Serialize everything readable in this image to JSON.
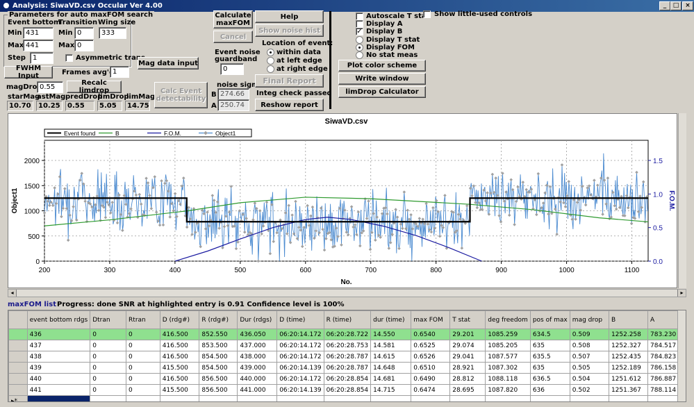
{
  "window": {
    "title": "Analysis: SiwaVD.csv  Occular Ver 4.00"
  },
  "params": {
    "group_title": "Parameters for auto maxFOM search",
    "event_bottom": "Event bottom",
    "transition": "Transition",
    "wing_size": "Wing size",
    "min_label": "Min",
    "max_label": "Max",
    "step_label": "Step",
    "min_trans_label": "Min",
    "max_trans_label": "Max",
    "eb_min": "431",
    "eb_max": "441",
    "step": "1",
    "tr_min": "0",
    "tr_max": "0",
    "wing": "333",
    "asym_label": "Asymmetric trans"
  },
  "buttons": {
    "calc_maxfom": "Calculate maxFOM",
    "cancel": "Cancel",
    "help": "Help",
    "show_noise_hist": "Show noise hist",
    "mag_data_input": "Mag data input",
    "fwhm_input": "FWHM Input",
    "recalc_limdrop": "Recalc limdrop",
    "calc_event_det": "Calc Event detectability",
    "final_report": "Final Report",
    "reshow_report": "Reshow report",
    "plot_color": "Plot color scheme",
    "write_window": "Write window",
    "limdrop_calc": "limDrop Calculator"
  },
  "frames": {
    "label": "Frames avg'd:",
    "value": "1"
  },
  "event_noise": {
    "label1": "Event noise",
    "label2": "guardband",
    "value": "0"
  },
  "location": {
    "title": "Location of event:",
    "options": [
      "within data",
      "at left edge",
      "at right edge"
    ],
    "selected": 0
  },
  "noise_sigma": {
    "title": "noise sigma",
    "b_label": "B",
    "a_label": "A",
    "b_value": "274.66",
    "a_value": "250.74"
  },
  "integ": "Integ check passed",
  "magdrop": {
    "label": "magDrop:",
    "value": "0.55"
  },
  "mags": {
    "labels": [
      "starMag",
      "astMag",
      "predDrop",
      "limDrop",
      "limMag"
    ],
    "values": [
      "10.70",
      "10.25",
      "0.55",
      "5.05",
      "14.75"
    ]
  },
  "options": {
    "autoscale": "Autoscale T stat",
    "display_a": "Display A",
    "display_b": "Display B",
    "display_t": "Display T stat",
    "display_fom": "Display FOM",
    "no_stat": "No stat meas",
    "show_little": "Show little-used controls"
  },
  "chart_data": {
    "type": "line",
    "title": "SiwaVD.csv",
    "xlabel": "No.",
    "ylabel": "Object1",
    "y2label": "F.O.M.",
    "xlim": [
      200,
      1125
    ],
    "ylim": [
      0,
      2400
    ],
    "y2lim": [
      0,
      1.8
    ],
    "x_ticks": [
      200,
      300,
      400,
      500,
      600,
      700,
      800,
      900,
      1000,
      1100
    ],
    "y_ticks": [
      0,
      500,
      1000,
      1500,
      2000
    ],
    "y2_ticks": [
      "0.0",
      "0.5",
      "1.0",
      "1.5"
    ],
    "legend": [
      "Event found",
      "B",
      "F.O.M.",
      "Object1"
    ],
    "legend_placement": "top-left",
    "series": [
      {
        "name": "Event found",
        "color": "#000000",
        "x": [
          200,
          418,
          418,
          852,
          852,
          1125
        ],
        "y": [
          1252,
          1252,
          783,
          783,
          1252,
          1252
        ]
      },
      {
        "name": "B",
        "color": "#2e9a2e",
        "x": [
          200,
          300,
          420,
          500,
          600,
          700,
          850,
          950,
          1050,
          1125
        ],
        "y": [
          700,
          820,
          1000,
          1160,
          1270,
          1240,
          1130,
          1020,
          860,
          780
        ]
      },
      {
        "name": "F.O.M.",
        "color": "#1a1aa0",
        "axis": "y2",
        "x": [
          400,
          450,
          500,
          550,
          600,
          634,
          670,
          720,
          770,
          820,
          870
        ],
        "y": [
          0.0,
          0.15,
          0.33,
          0.5,
          0.62,
          0.654,
          0.62,
          0.52,
          0.38,
          0.2,
          0.0
        ]
      },
      {
        "name": "Object1",
        "color": "#4a8ad0",
        "marker_color": "#a0a0a0",
        "x": [
          200,
          1125
        ],
        "y": [
          1250,
          1250
        ],
        "note_levels": {
          "outside": 1250,
          "inside": 780
        }
      }
    ]
  },
  "status": {
    "list_title": "maxFOM list",
    "progress": "Progress: done  SNR at highlighted entry is 0.91   Confidence level is  100%"
  },
  "table": {
    "headers": [
      "event bottom rdgs",
      "Dtran",
      "Rtran",
      "D (rdg#)",
      "R (rdg#)",
      "Dur (rdgs)",
      "D (time)",
      "R (time)",
      "dur (time)",
      "max FOM",
      "T stat",
      "deg freedom",
      "pos of max",
      "mag drop",
      "B",
      "A"
    ],
    "rows": [
      [
        "436",
        "0",
        "0",
        "416.500",
        "852.550",
        "436.050",
        "06:20:14.172",
        "06:20:28.722",
        "14.550",
        "0.6540",
        "29.201",
        "1085.259",
        "634.5",
        "0.509",
        "1252.258",
        "783.230"
      ],
      [
        "437",
        "0",
        "0",
        "416.500",
        "853.500",
        "437.000",
        "06:20:14.172",
        "06:20:28.753",
        "14.581",
        "0.6525",
        "29.074",
        "1085.205",
        "635",
        "0.508",
        "1252.327",
        "784.517"
      ],
      [
        "438",
        "0",
        "0",
        "416.500",
        "854.500",
        "438.000",
        "06:20:14.172",
        "06:20:28.787",
        "14.615",
        "0.6526",
        "29.041",
        "1087.577",
        "635.5",
        "0.507",
        "1252.435",
        "784.823"
      ],
      [
        "439",
        "0",
        "0",
        "415.500",
        "854.500",
        "439.000",
        "06:20:14.139",
        "06:20:28.787",
        "14.648",
        "0.6510",
        "28.921",
        "1087.302",
        "635",
        "0.505",
        "1252.189",
        "786.158"
      ],
      [
        "440",
        "0",
        "0",
        "416.500",
        "856.500",
        "440.000",
        "06:20:14.172",
        "06:20:28.854",
        "14.681",
        "0.6490",
        "28.812",
        "1088.118",
        "636.5",
        "0.504",
        "1251.612",
        "786.887"
      ],
      [
        "441",
        "0",
        "0",
        "415.500",
        "856.500",
        "441.000",
        "06:20:14.139",
        "06:20:28.854",
        "14.715",
        "0.6474",
        "28.695",
        "1087.820",
        "636",
        "0.502",
        "1251.367",
        "788.114"
      ]
    ],
    "new_row_marker": "▸*"
  }
}
